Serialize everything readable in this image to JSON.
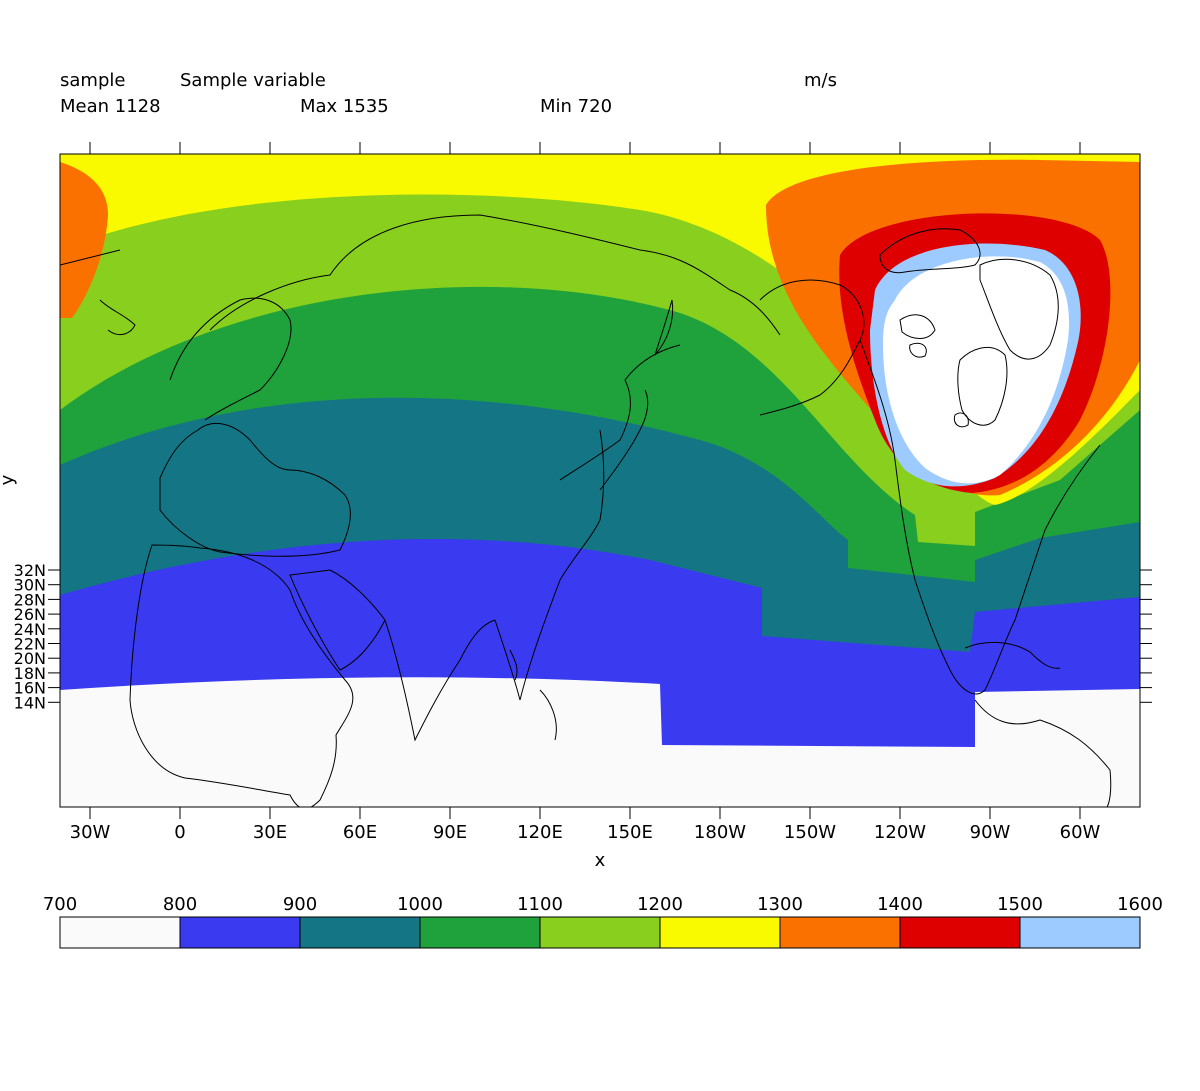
{
  "header": {
    "dataset": "sample",
    "variable": "Sample variable",
    "units": "m/s",
    "mean_label": "Mean 1128",
    "max_label": "Max 1535",
    "min_label": "Min 720"
  },
  "chart_data": {
    "type": "heatmap",
    "title": "Sample variable",
    "units": "m/s",
    "xlabel": "x",
    "ylabel": "y",
    "stats": {
      "mean": 1128,
      "max": 1535,
      "min": 720
    },
    "x_ticks": [
      "30W",
      "0",
      "30E",
      "60E",
      "90E",
      "120E",
      "150E",
      "180W",
      "150W",
      "120W",
      "90W",
      "60W"
    ],
    "y_ticks": [
      "32N",
      "30N",
      "28N",
      "26N",
      "24N",
      "22N",
      "20N",
      "18N",
      "16N",
      "14N"
    ],
    "colorbar": {
      "levels": [
        700,
        800,
        900,
        1000,
        1100,
        1200,
        1300,
        1400,
        1500,
        1600
      ],
      "colors": [
        "#fafafa",
        "#3a3af0",
        "#147585",
        "#1fa23c",
        "#88cf1e",
        "#f9f900",
        "#fb7100",
        "#de0000",
        "#9ecbff"
      ]
    },
    "features": [
      "coastlines",
      "filled contours"
    ]
  }
}
